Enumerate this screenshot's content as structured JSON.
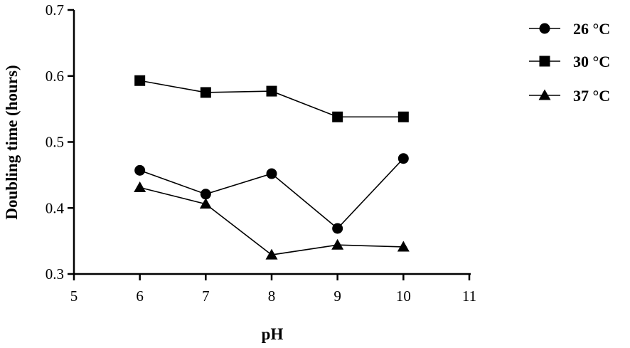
{
  "chart_data": {
    "type": "line",
    "title": "",
    "xlabel": "pH",
    "ylabel": "Doubling time (hours)",
    "xlim": [
      5,
      11
    ],
    "ylim": [
      0.3,
      0.7
    ],
    "xticks": [
      "5",
      "6",
      "7",
      "8",
      "9",
      "10",
      "11"
    ],
    "yticks": [
      "0.3",
      "0.4",
      "0.5",
      "0.6",
      "0.7"
    ],
    "x": [
      6,
      7,
      8,
      9,
      10
    ],
    "grid": false,
    "legend_position": "top-right",
    "series": [
      {
        "name": "26 °C",
        "marker": "circle",
        "values": [
          0.457,
          0.421,
          0.452,
          0.369,
          0.475
        ]
      },
      {
        "name": "30 °C",
        "marker": "square",
        "values": [
          0.593,
          0.575,
          0.577,
          0.538,
          0.538
        ]
      },
      {
        "name": "37 °C",
        "marker": "triangle",
        "values": [
          0.431,
          0.406,
          0.329,
          0.344,
          0.341
        ]
      }
    ]
  }
}
